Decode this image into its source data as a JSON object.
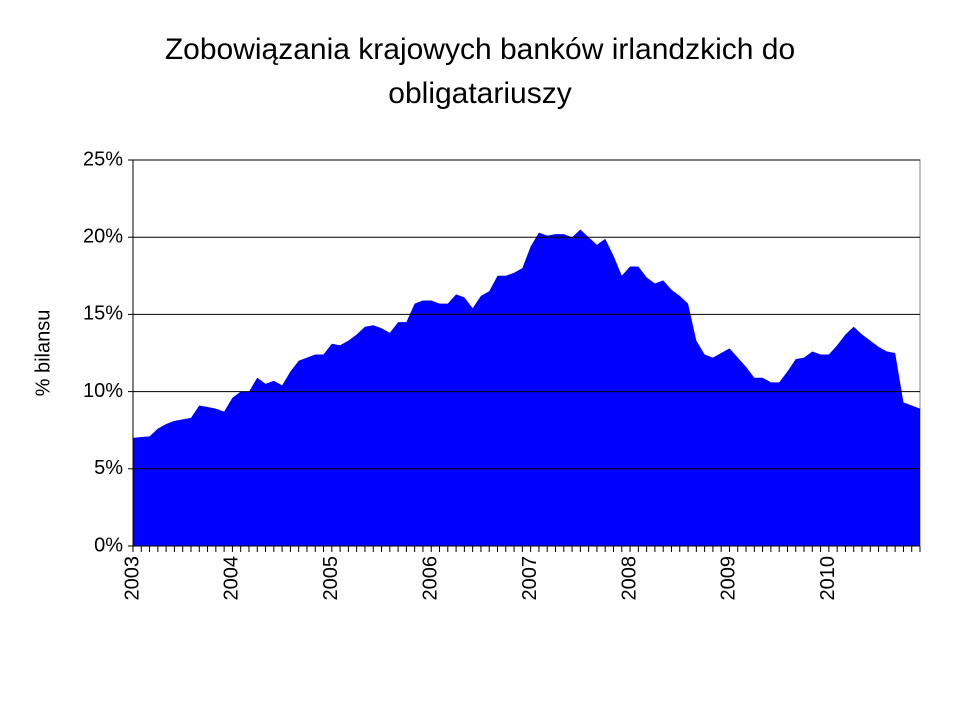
{
  "chart_data": {
    "type": "area",
    "title": "Zobowiązania krajowych banków irlandzkich do obligatariuszy",
    "y_label": "% bilansu",
    "categories": [
      "2003",
      null,
      null,
      null,
      null,
      null,
      null,
      null,
      null,
      null,
      null,
      null,
      "2004",
      null,
      null,
      null,
      null,
      null,
      null,
      null,
      null,
      null,
      null,
      null,
      "2005",
      null,
      null,
      null,
      null,
      null,
      null,
      null,
      null,
      null,
      null,
      null,
      "2006",
      null,
      null,
      null,
      null,
      null,
      null,
      null,
      null,
      null,
      null,
      null,
      "2007",
      null,
      null,
      null,
      null,
      null,
      null,
      null,
      null,
      null,
      null,
      null,
      "2008",
      null,
      null,
      null,
      null,
      null,
      null,
      null,
      null,
      null,
      null,
      null,
      "2009",
      null,
      null,
      null,
      null,
      null,
      null,
      null,
      null,
      null,
      null,
      null,
      "2010",
      null,
      null,
      null,
      null,
      null,
      null,
      null,
      null,
      null,
      null,
      null
    ],
    "values": [
      7.0,
      7.06,
      7.1,
      7.6,
      7.9,
      8.1,
      8.2,
      8.3,
      9.1,
      9.0,
      8.9,
      8.7,
      9.6,
      10.0,
      10.0,
      10.9,
      10.5,
      10.7,
      10.4,
      11.3,
      12.0,
      12.2,
      12.4,
      12.4,
      13.1,
      13.0,
      13.3,
      13.7,
      14.2,
      14.3,
      14.1,
      13.8,
      14.5,
      14.5,
      15.7,
      15.9,
      15.9,
      15.7,
      15.7,
      16.3,
      16.1,
      15.4,
      16.2,
      16.5,
      17.5,
      17.5,
      17.7,
      18.0,
      19.4,
      20.3,
      20.1,
      20.2,
      20.2,
      20.0,
      20.5,
      20.0,
      19.5,
      19.9,
      18.8,
      17.5,
      18.1,
      18.1,
      17.4,
      17.0,
      17.2,
      16.6,
      16.2,
      15.7,
      13.3,
      12.4,
      12.2,
      12.5,
      12.8,
      12.2,
      11.6,
      10.9,
      10.9,
      10.6,
      10.6,
      11.3,
      12.1,
      12.2,
      12.6,
      12.4,
      12.4,
      13.0,
      13.7,
      14.2,
      13.7,
      13.3,
      12.9,
      12.6,
      12.5,
      9.3,
      9.1,
      8.9
    ],
    "color": "#0000ff",
    "ylim": [
      0,
      25
    ],
    "yticks": [
      {
        "value": 0,
        "label": "0%"
      },
      {
        "value": 5,
        "label": "5%"
      },
      {
        "value": 10,
        "label": "10%"
      },
      {
        "value": 15,
        "label": "15%"
      },
      {
        "value": 20,
        "label": "20%"
      },
      {
        "value": 25,
        "label": "25%"
      }
    ],
    "grid": true
  }
}
